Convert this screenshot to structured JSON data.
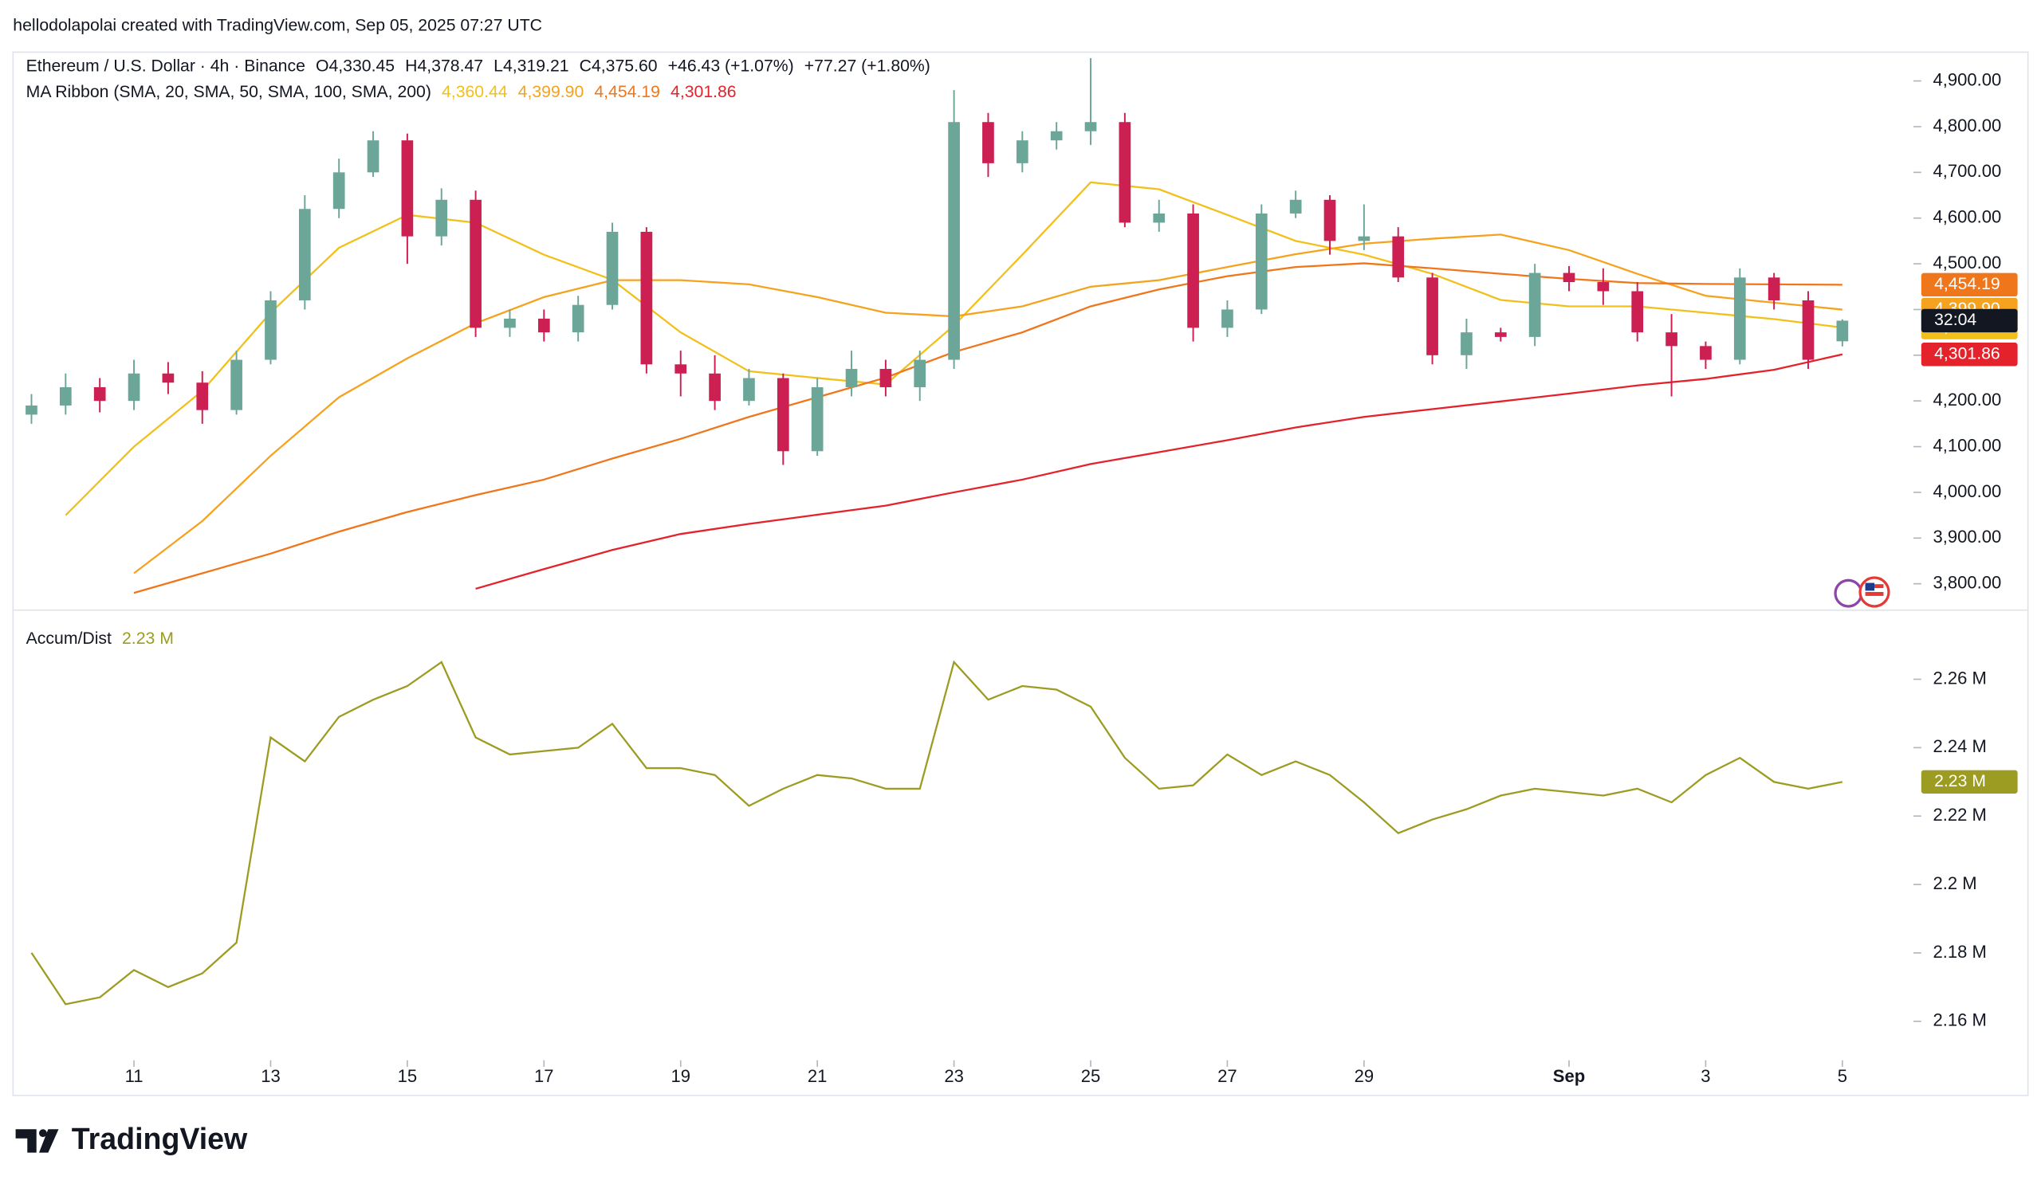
{
  "header": "hellodolapolai created with TradingView.com, Sep 05, 2025 07:27 UTC",
  "footer": {
    "logo": "TradingView"
  },
  "chart_data": [
    {
      "type": "candlestick",
      "title": "Ethereum / U.S. Dollar · 4h · Binance",
      "ohlc": [
        {
          "key": "O",
          "value": "4,330.45"
        },
        {
          "key": "H",
          "value": "4,378.47"
        },
        {
          "key": "L",
          "value": "4,319.21"
        },
        {
          "key": "C",
          "value": "4,375.60"
        }
      ],
      "change": "+46.43 (+1.07%)",
      "change2": "+77.27 (+1.80%)",
      "countdown": "32:04",
      "up_color": "#6ca699",
      "down_color": "#cc1f52",
      "xlim": [
        9.23,
        37.04
      ],
      "ylim": [
        3745,
        4963
      ],
      "yticks": [
        {
          "value": 3800,
          "label": "3,800.00"
        },
        {
          "value": 3900,
          "label": "3,900.00"
        },
        {
          "value": 4000,
          "label": "4,000.00"
        },
        {
          "value": 4100,
          "label": "4,100.00"
        },
        {
          "value": 4200,
          "label": "4,200.00"
        },
        {
          "value": 4300,
          "label": "4,300.00"
        },
        {
          "value": 4400,
          "label": "4,400.00"
        },
        {
          "value": 4500,
          "label": "4,500.00"
        },
        {
          "value": 4600,
          "label": "4,600.00"
        },
        {
          "value": 4700,
          "label": "4,700.00"
        },
        {
          "value": 4800,
          "label": "4,800.00"
        },
        {
          "value": 4900,
          "label": "4,900.00"
        }
      ],
      "x": [
        9.5,
        10,
        10.5,
        11,
        11.5,
        12,
        12.5,
        13,
        13.5,
        14,
        14.5,
        15,
        15.5,
        16,
        16.5,
        17,
        17.5,
        18,
        18.5,
        19,
        19.5,
        20,
        20.5,
        21,
        21.5,
        22,
        22.5,
        23,
        23.5,
        24,
        24.5,
        25,
        25.5,
        26,
        26.5,
        27,
        27.5,
        28,
        28.5,
        29,
        29.5,
        30,
        30.5,
        31,
        31.5,
        32,
        32.5,
        33,
        33.5,
        34,
        34.5,
        35,
        35.5,
        36
      ],
      "open": [
        4170,
        4190,
        4230,
        4200,
        4260,
        4240,
        4180,
        4290,
        4420,
        4620,
        4700,
        4770,
        4560,
        4640,
        4360,
        4380,
        4350,
        4410,
        4570,
        4280,
        4260,
        4200,
        4250,
        4090,
        4230,
        4270,
        4230,
        4290,
        4810,
        4720,
        4770,
        4790,
        4810,
        4590,
        4610,
        4360,
        4400,
        4610,
        4640,
        4550,
        4560,
        4470,
        4300,
        4350,
        4340,
        4480,
        4460,
        4440,
        4350,
        4320,
        4290,
        4470,
        4420,
        4330.45
      ],
      "high": [
        4215,
        4260,
        4250,
        4290,
        4285,
        4265,
        4310,
        4440,
        4650,
        4730,
        4790,
        4785,
        4665,
        4660,
        4400,
        4400,
        4430,
        4590,
        4580,
        4310,
        4300,
        4270,
        4260,
        4250,
        4310,
        4290,
        4310,
        4880,
        4830,
        4790,
        4810,
        4950,
        4830,
        4640,
        4630,
        4420,
        4630,
        4660,
        4650,
        4630,
        4580,
        4480,
        4380,
        4360,
        4500,
        4495,
        4490,
        4460,
        4390,
        4330,
        4490,
        4480,
        4440,
        4378.47
      ],
      "low": [
        4150,
        4170,
        4175,
        4180,
        4215,
        4150,
        4170,
        4280,
        4400,
        4600,
        4690,
        4500,
        4540,
        4340,
        4340,
        4330,
        4330,
        4400,
        4260,
        4210,
        4180,
        4190,
        4060,
        4080,
        4210,
        4210,
        4200,
        4270,
        4690,
        4700,
        4750,
        4760,
        4580,
        4570,
        4330,
        4340,
        4390,
        4600,
        4520,
        4530,
        4460,
        4280,
        4270,
        4330,
        4320,
        4440,
        4410,
        4330,
        4210,
        4270,
        4280,
        4400,
        4270,
        4319.21
      ],
      "close": [
        4190,
        4230,
        4200,
        4260,
        4240,
        4180,
        4290,
        4420,
        4620,
        4700,
        4770,
        4560,
        4640,
        4360,
        4380,
        4350,
        4410,
        4570,
        4280,
        4260,
        4200,
        4250,
        4090,
        4230,
        4270,
        4230,
        4290,
        4810,
        4720,
        4770,
        4790,
        4810,
        4590,
        4610,
        4360,
        4400,
        4610,
        4640,
        4550,
        4560,
        4470,
        4300,
        4350,
        4340,
        4480,
        4460,
        4440,
        4350,
        4320,
        4290,
        4470,
        4420,
        4290,
        4375.6
      ],
      "ma": {
        "label": "MA Ribbon (SMA, 20, SMA, 50, SMA, 100, SMA, 200)",
        "x": [
          10,
          11,
          12,
          13,
          14,
          15,
          16,
          17,
          18,
          19,
          20,
          21,
          22,
          23,
          24,
          25,
          26,
          27,
          28,
          29,
          30,
          31,
          32,
          33,
          34,
          35,
          36
        ],
        "series": [
          {
            "color": "#f2c01a",
            "value_label": "4,360.44",
            "values": [
              3950,
              4100,
              4222,
              4393,
              4535,
              4607,
              4590,
              4520,
              4465,
              4350,
              4265,
              4250,
              4236,
              4365,
              4520,
              4678,
              4663,
              4607,
              4550,
              4520,
              4478,
              4421,
              4407,
              4407,
              4393,
              4379,
              4360.44
            ]
          },
          {
            "color": "#f5a21e",
            "value_label": "4,399.90",
            "values": [
              null,
              3823,
              3937,
              4080,
              4208,
              4293,
              4370,
              4427,
              4464,
              4464,
              4455,
              4427,
              4393,
              4385,
              4407,
              4450,
              4464,
              4493,
              4521,
              4544,
              4555,
              4564,
              4530,
              4478,
              4430,
              4415,
              4399.9
            ]
          },
          {
            "color": "#f0761c",
            "value_label": "4,454.19",
            "values": [
              null,
              3780,
              3823,
              3866,
              3914,
              3957,
              3994,
              4028,
              4074,
              4117,
              4165,
              4208,
              4251,
              4307,
              4350,
              4407,
              4444,
              4473,
              4493,
              4501,
              4490,
              4478,
              4467,
              4458,
              4456,
              4455,
              4454.19
            ]
          },
          {
            "color": "#e3222b",
            "value_label": "4,301.86",
            "values": [
              null,
              null,
              null,
              null,
              null,
              null,
              3789,
              3832,
              3874,
              3909,
              3931,
              3951,
              3971,
              4000,
              4028,
              4062,
              4088,
              4114,
              4142,
              4165,
              4182,
              4199,
              4216,
              4234,
              4248,
              4268,
              4301.86
            ]
          }
        ]
      }
    },
    {
      "type": "line",
      "name": "Accum/Dist",
      "value_label": "2.23 M",
      "color": "#9c9c22",
      "xlim": [
        9.23,
        37.04
      ],
      "ylim": [
        2.1486,
        2.2798
      ],
      "xticks": [
        11,
        13,
        15,
        17,
        19,
        21,
        23,
        25,
        27,
        29,
        {
          "value": 32,
          "label": "Sep"
        },
        {
          "value": 34,
          "label": "3"
        },
        {
          "value": 36,
          "label": "5"
        }
      ],
      "yticks": [
        {
          "value": 2.16,
          "label": "2.16 M"
        },
        {
          "value": 2.18,
          "label": "2.18 M"
        },
        {
          "value": 2.2,
          "label": "2.2 M"
        },
        {
          "value": 2.22,
          "label": "2.22 M"
        },
        {
          "value": 2.24,
          "label": "2.24 M"
        },
        {
          "value": 2.26,
          "label": "2.26 M"
        }
      ],
      "x": [
        9.5,
        10,
        10.5,
        11,
        11.5,
        12,
        12.5,
        13,
        13.5,
        14,
        14.5,
        15,
        15.5,
        16,
        16.5,
        17,
        17.5,
        18,
        18.5,
        19,
        19.5,
        20,
        20.5,
        21,
        21.5,
        22,
        22.5,
        23,
        23.5,
        24,
        24.5,
        25,
        25.5,
        26,
        26.5,
        27,
        27.5,
        28,
        28.5,
        29,
        29.5,
        30,
        30.5,
        31,
        31.5,
        32,
        32.5,
        33,
        33.5,
        34,
        34.5,
        35,
        35.5,
        36
      ],
      "values": [
        2.18,
        2.165,
        2.167,
        2.175,
        2.17,
        2.174,
        2.183,
        2.243,
        2.236,
        2.249,
        2.254,
        2.258,
        2.265,
        2.243,
        2.238,
        2.239,
        2.24,
        2.247,
        2.234,
        2.234,
        2.232,
        2.223,
        2.228,
        2.232,
        2.231,
        2.228,
        2.228,
        2.265,
        2.254,
        2.258,
        2.257,
        2.252,
        2.237,
        2.228,
        2.229,
        2.238,
        2.232,
        2.236,
        2.232,
        2.224,
        2.215,
        2.219,
        2.222,
        2.226,
        2.228,
        2.227,
        2.226,
        2.228,
        2.224,
        2.232,
        2.237,
        2.23,
        2.228,
        2.23
      ]
    }
  ]
}
